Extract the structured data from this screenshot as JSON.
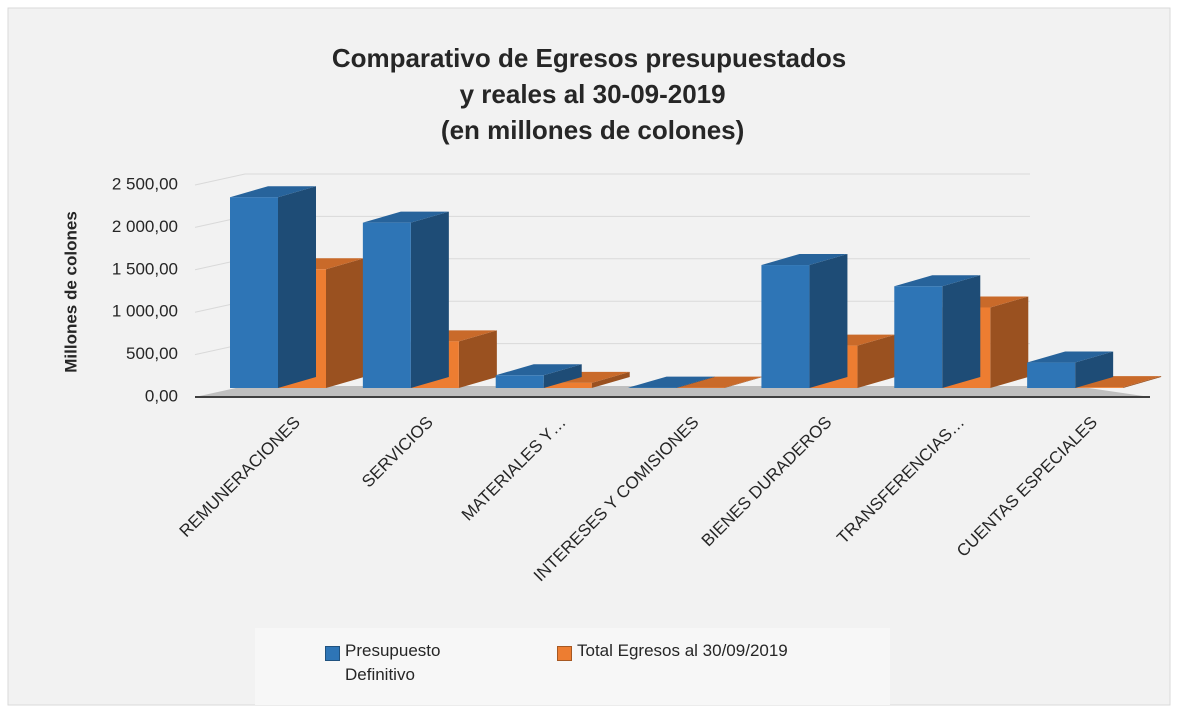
{
  "chart_data": {
    "type": "bar3d",
    "title": "Comparativo de Egresos presupuestados y reales al 30-09-2019 (en millones de colones)",
    "y_label": "Millones de colones",
    "categories": [
      "REMUNERACIONES",
      "SERVICIOS",
      "MATERIALES Y…",
      "INTERESES Y COMISIONES",
      "BIENES DURADEROS",
      "TRANSFERENCIAS…",
      "CUENTAS ESPECIALES"
    ],
    "series": [
      {
        "name": "Presupuesto Definitivo",
        "color": "#2e75b6",
        "values": [
          2250,
          1950,
          150,
          5,
          1450,
          1200,
          300
        ]
      },
      {
        "name": "Total Egresos al 30/09/2019",
        "color": "#ed7d31",
        "values": [
          1400,
          550,
          60,
          5,
          500,
          950,
          10
        ]
      }
    ],
    "ylim": [
      0,
      2500
    ],
    "yticks": [
      {
        "value": 0,
        "label": "0,00"
      },
      {
        "value": 500,
        "label": "500,00"
      },
      {
        "value": 1000,
        "label": "1 000,00"
      },
      {
        "value": 1500,
        "label": "1 500,00"
      },
      {
        "value": 2000,
        "label": "2 000,00"
      },
      {
        "value": 2500,
        "label": "2 500,00"
      }
    ],
    "grid": true,
    "legend": "bottom"
  }
}
